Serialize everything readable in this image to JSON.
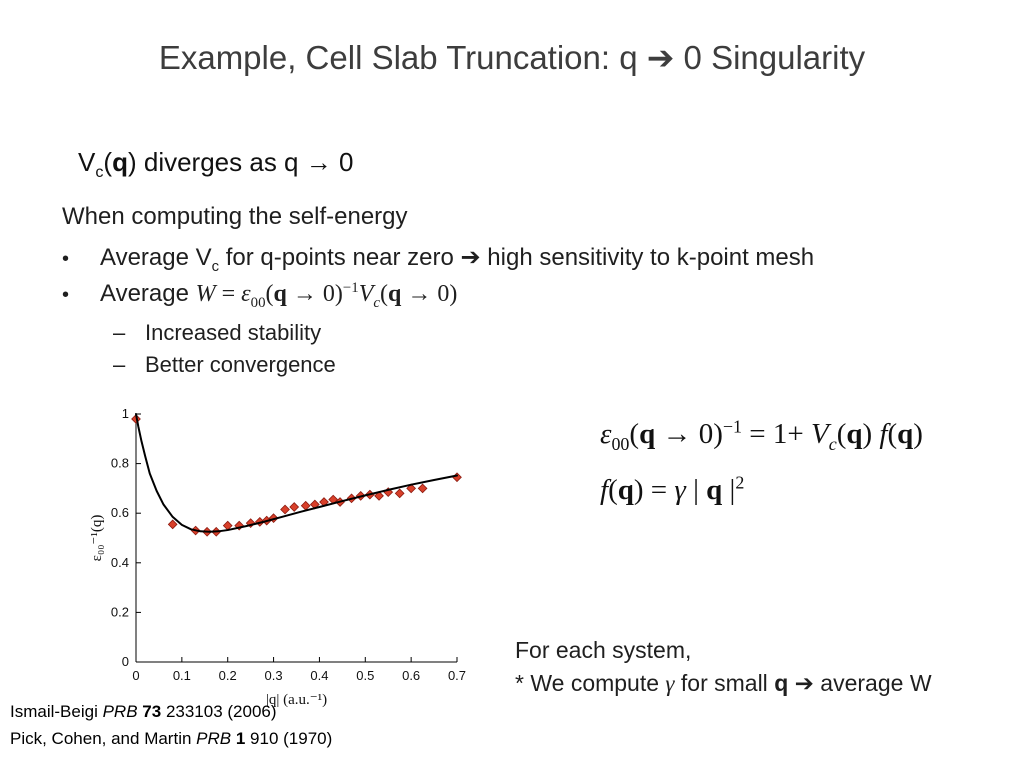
{
  "slide": {
    "title": "Example, Cell Slab Truncation: q ➔ 0 Singularity"
  },
  "eq_vc": {
    "tokens": [
      {
        "t": "V"
      },
      {
        "t": "c",
        "f": "sub"
      },
      {
        "t": "("
      },
      {
        "t": "q",
        "f": "b"
      },
      {
        "t": ")"
      },
      {
        "t": " diverges as q "
      },
      {
        "t": "→"
      },
      {
        "t": " 0"
      }
    ]
  },
  "intro": "When computing the self-energy",
  "bullets": {
    "bullet_char": "•",
    "dash_char": "–",
    "b1": {
      "tokens": [
        {
          "t": "Average V"
        },
        {
          "t": "c",
          "f": "sub"
        },
        {
          "t": " for q-points near zero "
        },
        {
          "t": "➔",
          "f": "a"
        },
        {
          "t": " high sensitivity to k-point mesh"
        }
      ]
    },
    "b2": {
      "tokens": [
        {
          "t": "Average "
        },
        {
          "t": "W",
          "f": "i m"
        },
        {
          "t": " = ",
          "f": "m"
        },
        {
          "t": "ε",
          "f": "i m"
        },
        {
          "t": "00",
          "f": "sub m"
        },
        {
          "t": "(",
          "f": "m"
        },
        {
          "t": "q",
          "f": "b m"
        },
        {
          "t": " → 0)",
          "f": "m"
        },
        {
          "t": "−1",
          "f": "sup m"
        },
        {
          "t": "V",
          "f": "i m"
        },
        {
          "t": "c",
          "f": "sub i m"
        },
        {
          "t": "(",
          "f": "m"
        },
        {
          "t": "q",
          "f": "b m"
        },
        {
          "t": " → 0)",
          "f": "m"
        }
      ]
    },
    "sub1": "Increased stability",
    "sub2": "Better convergence"
  },
  "equations": {
    "eps": {
      "tokens": [
        {
          "t": "ε",
          "f": "i"
        },
        {
          "t": "00",
          "f": "sub"
        },
        {
          "t": "("
        },
        {
          "t": "q",
          "f": "b"
        },
        {
          "t": " → 0)"
        },
        {
          "t": "−1",
          "f": "sup"
        },
        {
          "t": " = 1+ "
        },
        {
          "t": "V",
          "f": "i"
        },
        {
          "t": "c",
          "f": "sub i"
        },
        {
          "t": "("
        },
        {
          "t": "q",
          "f": "b"
        },
        {
          "t": ") "
        },
        {
          "t": "f",
          "f": "i"
        },
        {
          "t": "("
        },
        {
          "t": "q",
          "f": "b"
        },
        {
          "t": ")"
        }
      ]
    },
    "f": {
      "tokens": [
        {
          "t": "f",
          "f": "i"
        },
        {
          "t": "("
        },
        {
          "t": "q",
          "f": "b"
        },
        {
          "t": ") = "
        },
        {
          "t": "γ",
          "f": "i"
        },
        {
          "t": " | "
        },
        {
          "t": "q",
          "f": "b"
        },
        {
          "t": " |"
        },
        {
          "t": "2",
          "f": "sup"
        }
      ]
    }
  },
  "note": {
    "line1": "For each system,",
    "line2_tokens": [
      {
        "t": "* We compute "
      },
      {
        "t": "γ",
        "f": "i m"
      },
      {
        "t": " for small "
      },
      {
        "t": "q",
        "f": "b"
      },
      {
        "t": " "
      },
      {
        "t": "➔",
        "f": "a"
      },
      {
        "t": " average W"
      }
    ]
  },
  "references": {
    "ref1": {
      "tokens": [
        {
          "t": "Ismail-Beigi "
        },
        {
          "t": "PRB",
          "f": "i"
        },
        {
          "t": " "
        },
        {
          "t": "73",
          "f": "b"
        },
        {
          "t": " 233103 (2006)"
        }
      ]
    },
    "ref2": {
      "tokens": [
        {
          "t": "Pick, Cohen, and Martin "
        },
        {
          "t": "PRB",
          "f": "i"
        },
        {
          "t": " "
        },
        {
          "t": "1",
          "f": "b"
        },
        {
          "t": " 910 (1970)"
        }
      ]
    }
  },
  "chart_data": {
    "type": "scatter",
    "title": "",
    "xlabel": "|q| (a.u.⁻¹)",
    "ylabel": "ε₀₀⁻¹(q)",
    "xlim": [
      0,
      0.7
    ],
    "ylim": [
      0,
      1
    ],
    "xticks": [
      0,
      0.1,
      0.2,
      0.3,
      0.4,
      0.5,
      0.6,
      0.7
    ],
    "yticks": [
      0,
      0.2,
      0.4,
      0.6,
      0.8,
      1
    ],
    "grid": false,
    "legend": "none",
    "series": [
      {
        "name": "computed eps00-inverse at q-points",
        "type": "scatter",
        "marker": "diamond",
        "color": "#d8402a",
        "edge_color": "#8b1a10",
        "points": [
          [
            0,
            0.98
          ],
          [
            0.08,
            0.555
          ],
          [
            0.13,
            0.53
          ],
          [
            0.155,
            0.525
          ],
          [
            0.175,
            0.525
          ],
          [
            0.2,
            0.55
          ],
          [
            0.225,
            0.55
          ],
          [
            0.25,
            0.56
          ],
          [
            0.27,
            0.565
          ],
          [
            0.285,
            0.57
          ],
          [
            0.3,
            0.58
          ],
          [
            0.325,
            0.615
          ],
          [
            0.345,
            0.625
          ],
          [
            0.37,
            0.63
          ],
          [
            0.39,
            0.635
          ],
          [
            0.41,
            0.645
          ],
          [
            0.43,
            0.655
          ],
          [
            0.445,
            0.645
          ],
          [
            0.47,
            0.66
          ],
          [
            0.49,
            0.67
          ],
          [
            0.51,
            0.675
          ],
          [
            0.53,
            0.67
          ],
          [
            0.55,
            0.685
          ],
          [
            0.575,
            0.68
          ],
          [
            0.6,
            0.7
          ],
          [
            0.625,
            0.7
          ],
          [
            0.7,
            0.745
          ]
        ]
      },
      {
        "name": "fit 1 + Vc(q) f(q)",
        "type": "line",
        "color": "#000000",
        "points": [
          [
            0,
            1.0
          ],
          [
            0.005,
            0.95
          ],
          [
            0.012,
            0.89
          ],
          [
            0.02,
            0.83
          ],
          [
            0.03,
            0.76
          ],
          [
            0.045,
            0.69
          ],
          [
            0.06,
            0.635
          ],
          [
            0.08,
            0.585
          ],
          [
            0.1,
            0.553
          ],
          [
            0.12,
            0.535
          ],
          [
            0.14,
            0.527
          ],
          [
            0.16,
            0.525
          ],
          [
            0.18,
            0.527
          ],
          [
            0.2,
            0.532
          ],
          [
            0.24,
            0.548
          ],
          [
            0.28,
            0.566
          ],
          [
            0.32,
            0.586
          ],
          [
            0.36,
            0.606
          ],
          [
            0.4,
            0.625
          ],
          [
            0.45,
            0.649
          ],
          [
            0.5,
            0.672
          ],
          [
            0.55,
            0.694
          ],
          [
            0.6,
            0.715
          ],
          [
            0.65,
            0.734
          ],
          [
            0.7,
            0.752
          ]
        ]
      }
    ]
  }
}
